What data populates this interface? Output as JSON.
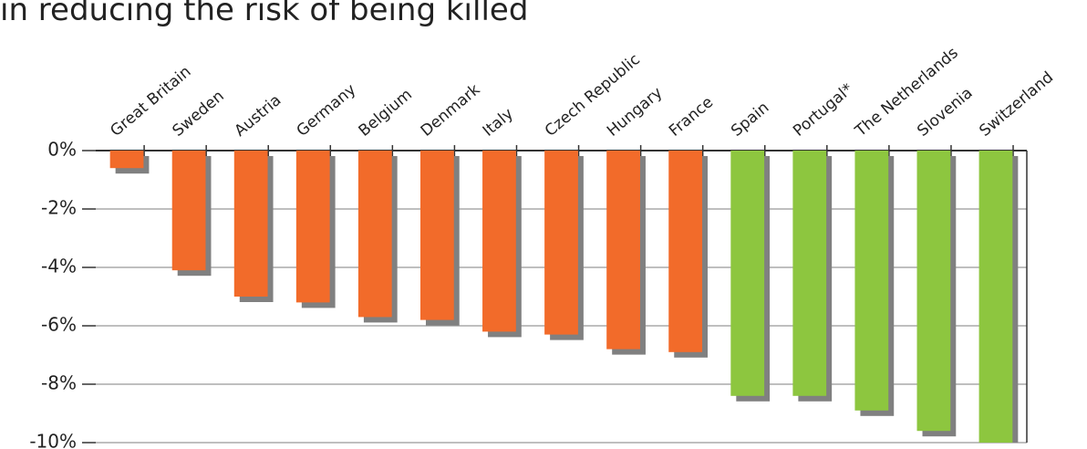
{
  "chart_data": {
    "type": "bar",
    "title": "in reducing the risk of being killed",
    "categories": [
      "Great Britain",
      "Sweden",
      "Austria",
      "Germany",
      "Belgium",
      "Denmark",
      "Italy",
      "Czech Republic",
      "Hungary",
      "France",
      "Spain",
      "Portugal*",
      "The Netherlands",
      "Slovenia",
      "Switzerland"
    ],
    "values": [
      -0.6,
      -4.1,
      -5.0,
      -5.2,
      -5.7,
      -5.8,
      -6.2,
      -6.3,
      -6.8,
      -6.9,
      -8.4,
      -8.4,
      -8.9,
      -9.6,
      -10.0
    ],
    "colors": [
      "#f26b2a",
      "#f26b2a",
      "#f26b2a",
      "#f26b2a",
      "#f26b2a",
      "#f26b2a",
      "#f26b2a",
      "#f26b2a",
      "#f26b2a",
      "#f26b2a",
      "#8dc63f",
      "#8dc63f",
      "#8dc63f",
      "#8dc63f",
      "#8dc63f"
    ],
    "ylim": [
      -10,
      0
    ],
    "yticks": [
      {
        "value": 0,
        "label": "0%"
      },
      {
        "value": -2,
        "label": "-2%"
      },
      {
        "value": -4,
        "label": "-4%"
      },
      {
        "value": -6,
        "label": "-6%"
      },
      {
        "value": -8,
        "label": "-8%"
      },
      {
        "value": -10,
        "label": "-10%"
      }
    ],
    "grid": true
  }
}
